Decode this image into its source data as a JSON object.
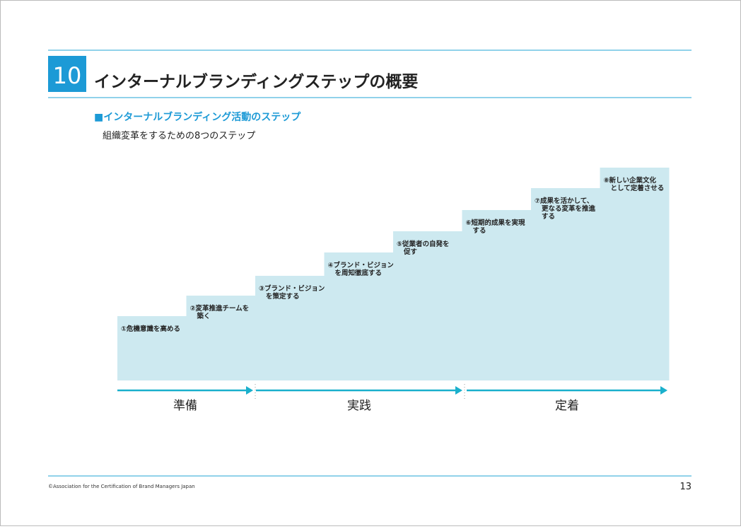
{
  "header": {
    "number": "10",
    "title": "インターナルブランディングステップの概要"
  },
  "section": {
    "heading": "■インターナルブランディング活動のステップ",
    "description": "組織変革をするための8つのステップ"
  },
  "steps": [
    {
      "lines": [
        "①危機意識を高める"
      ]
    },
    {
      "lines": [
        "②変革推進チームを",
        "築く"
      ]
    },
    {
      "lines": [
        "③ブランド・ビジョン",
        "を策定する"
      ]
    },
    {
      "lines": [
        "④ブランド・ビジョン",
        "を周知徹底する"
      ]
    },
    {
      "lines": [
        "⑤従業者の自発を",
        "促す"
      ]
    },
    {
      "lines": [
        "⑥短期的成果を実現",
        "する"
      ]
    },
    {
      "lines": [
        "⑦成果を活かして、",
        "更なる変革を推進",
        "する"
      ]
    },
    {
      "lines": [
        "⑧新しい企業文化",
        "として定着させる"
      ]
    }
  ],
  "phases": [
    "準備",
    "実践",
    "定着"
  ],
  "footer": {
    "copyright": "©Association for the Certification of Brand Managers Japan",
    "page": "13"
  }
}
